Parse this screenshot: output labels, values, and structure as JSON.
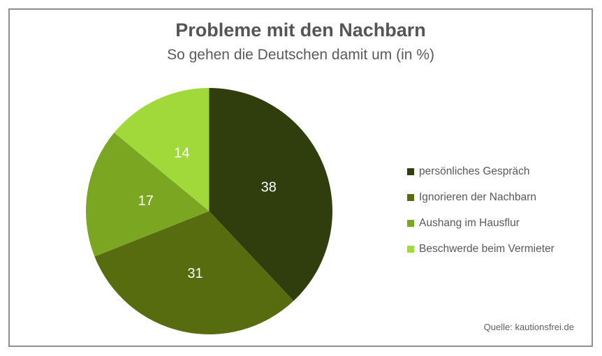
{
  "header": {
    "title": "Probleme mit den Nachbarn",
    "subtitle": "So gehen die Deutschen damit um (in %)"
  },
  "chart_data": {
    "type": "pie",
    "title": "Probleme mit den Nachbarn",
    "subtitle": "So gehen die Deutschen damit um (in %)",
    "unit": "%",
    "labels": [
      "persönliches Gespräch",
      "Ignorieren der Nachbarn",
      "Aushang im Hausflur",
      "Beschwerde beim Vermieter"
    ],
    "values": [
      38,
      31,
      17,
      14
    ],
    "colors": [
      "#2f3e0c",
      "#566c0e",
      "#7aa621",
      "#a1d93a"
    ],
    "value_label_color": "#ffffff",
    "start_angle_deg": 0,
    "direction": "clockwise",
    "legend_position": "right",
    "border_color": "#8f8f8f",
    "title_color": "#555555",
    "legend_text_color": "#595959"
  },
  "source": {
    "label": "Quelle: kautionsfrei.de"
  }
}
